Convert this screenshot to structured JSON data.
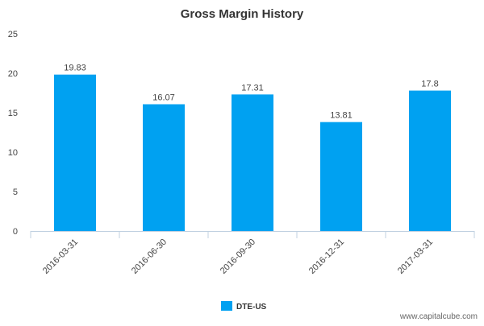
{
  "chart_data": {
    "type": "bar",
    "title": "Gross Margin History",
    "categories": [
      "2016-03-31",
      "2016-06-30",
      "2016-09-30",
      "2016-12-31",
      "2017-03-31"
    ],
    "series": [
      {
        "name": "DTE-US",
        "values": [
          19.83,
          16.07,
          17.31,
          13.81,
          17.8
        ],
        "labels": [
          "19.83",
          "16.07",
          "17.31",
          "13.81",
          "17.8"
        ],
        "color": "#00a1f1"
      }
    ],
    "xlabel": "",
    "ylabel": "",
    "ylim": [
      0,
      25
    ],
    "yticks": [
      0,
      5,
      10,
      15,
      20,
      25
    ],
    "grid": false,
    "legend_position": "bottom-center"
  },
  "watermark": "www.capitalcube.com",
  "colors": {
    "axis": "#c0d0e0",
    "bar": "#00a1f1"
  }
}
